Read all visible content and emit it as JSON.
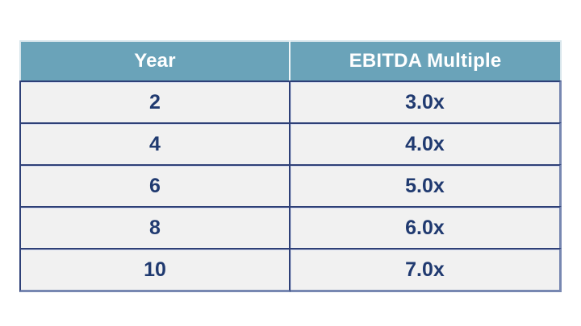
{
  "table": {
    "columns": [
      {
        "label": "Year"
      },
      {
        "label": "EBITDA Multiple"
      }
    ],
    "rows": [
      {
        "year": "2",
        "multiple": "3.0x"
      },
      {
        "year": "4",
        "multiple": "4.0x"
      },
      {
        "year": "6",
        "multiple": "5.0x"
      },
      {
        "year": "8",
        "multiple": "6.0x"
      },
      {
        "year": "10",
        "multiple": "7.0x"
      }
    ]
  },
  "chart_data": {
    "type": "table",
    "title": "",
    "columns": [
      "Year",
      "EBITDA Multiple"
    ],
    "rows": [
      [
        "2",
        "3.0x"
      ],
      [
        "4",
        "4.0x"
      ],
      [
        "6",
        "5.0x"
      ],
      [
        "8",
        "6.0x"
      ],
      [
        "10",
        "7.0x"
      ]
    ],
    "series": [
      {
        "name": "EBITDA Multiple",
        "x": [
          2,
          4,
          6,
          8,
          10
        ],
        "values": [
          3.0,
          4.0,
          5.0,
          6.0,
          7.0
        ]
      }
    ]
  },
  "colors": {
    "header_bg": "#6aa3b9",
    "header_text": "#ffffff",
    "cell_bg": "#f1f1f1",
    "cell_text": "#203a70",
    "inner_border": "#2e4077",
    "outer_border": "#7787b1"
  }
}
